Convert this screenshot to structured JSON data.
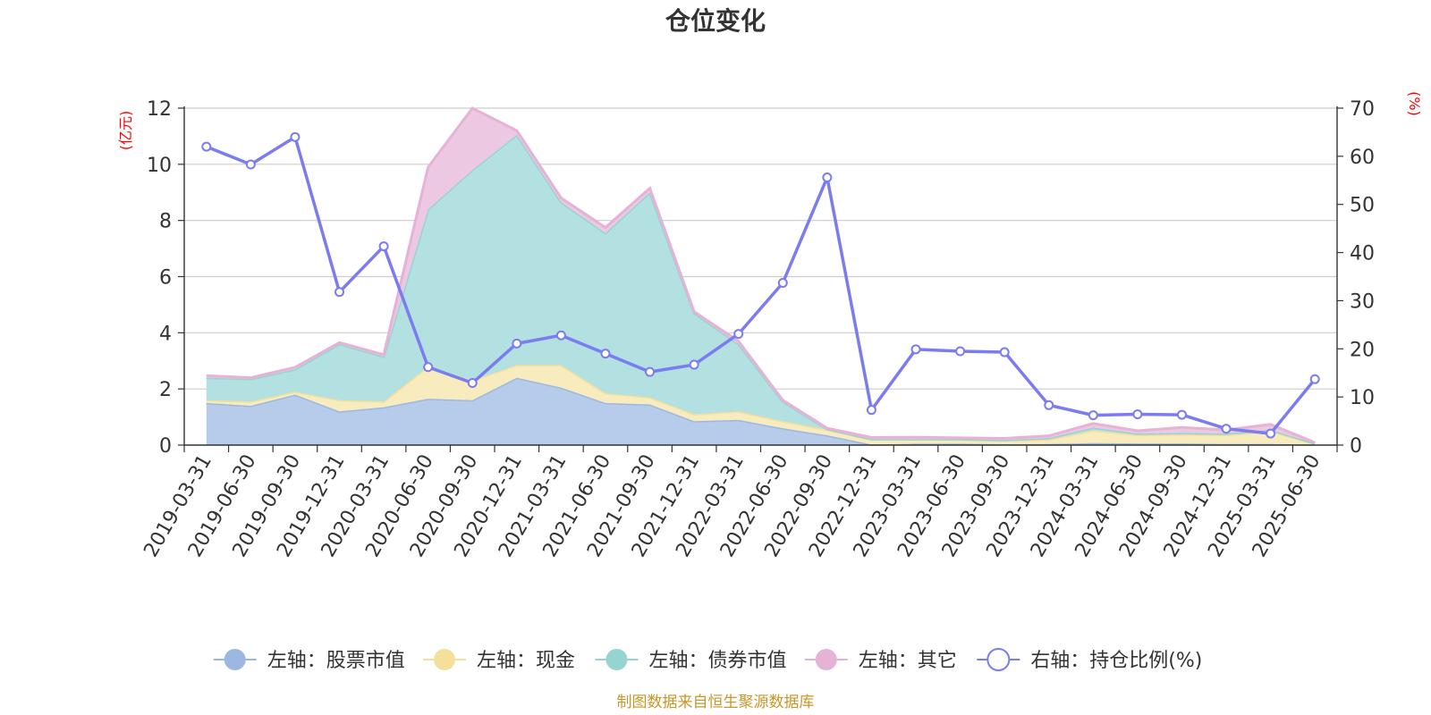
{
  "chart_data": {
    "type": "area",
    "title": "仓位变化",
    "left_axis": {
      "unit": "(亿元)",
      "ylim": [
        0,
        12
      ],
      "ticks": [
        "0",
        "2",
        "4",
        "6",
        "8",
        "10",
        "12"
      ]
    },
    "right_axis": {
      "unit": "(%)",
      "ylim": [
        0,
        70
      ],
      "ticks": [
        "0",
        "10",
        "20",
        "30",
        "40",
        "50",
        "60",
        "70"
      ]
    },
    "categories": [
      "2019-03-31",
      "2019-06-30",
      "2019-09-30",
      "2019-12-31",
      "2020-03-31",
      "2020-06-30",
      "2020-09-30",
      "2020-12-31",
      "2021-03-31",
      "2021-06-30",
      "2021-09-30",
      "2021-12-31",
      "2022-03-31",
      "2022-06-30",
      "2022-09-30",
      "2022-12-31",
      "2023-03-31",
      "2023-06-30",
      "2023-09-30",
      "2023-12-31",
      "2024-03-31",
      "2024-06-30",
      "2024-09-30",
      "2024-12-31",
      "2025-03-31",
      "2025-06-30"
    ],
    "series": [
      {
        "name": "左轴：股票市值",
        "axis": "left",
        "stacked": true,
        "color": "#9db8e0",
        "fill": "#b7cbea",
        "values": [
          1.5,
          1.4,
          1.8,
          1.2,
          1.35,
          1.65,
          1.6,
          2.4,
          2.05,
          1.5,
          1.45,
          0.85,
          0.9,
          0.6,
          0.35,
          0.02,
          0.05,
          0.05,
          0.03,
          0.04,
          0.07,
          0.06,
          0.06,
          0.04,
          0.04,
          0.02
        ]
      },
      {
        "name": "左轴：现金",
        "axis": "left",
        "stacked": true,
        "color": "#f5e09a",
        "fill": "#f8ecbe",
        "values": [
          0.1,
          0.15,
          0.1,
          0.4,
          0.2,
          1.15,
          0.7,
          0.45,
          0.8,
          0.35,
          0.25,
          0.25,
          0.3,
          0.25,
          0.2,
          0.18,
          0.15,
          0.15,
          0.13,
          0.16,
          0.45,
          0.3,
          0.32,
          0.32,
          0.45,
          0.03
        ]
      },
      {
        "name": "左轴：债券市值",
        "axis": "left",
        "stacked": true,
        "color": "#96d4d2",
        "fill": "#b3e1e1",
        "values": [
          0.8,
          0.8,
          0.8,
          2.0,
          1.6,
          5.6,
          7.5,
          8.2,
          5.8,
          5.7,
          7.3,
          3.6,
          2.4,
          0.7,
          0.02,
          0.01,
          0.01,
          0.01,
          0.02,
          0.05,
          0.1,
          0.05,
          0.05,
          0.05,
          0.05,
          0.01
        ]
      },
      {
        "name": "左轴：其它",
        "axis": "left",
        "stacked": true,
        "color": "#e6b2d6",
        "fill": "#ecc8e3",
        "values": [
          0.07,
          0.05,
          0.07,
          0.05,
          0.07,
          1.5,
          2.2,
          0.15,
          0.15,
          0.2,
          0.15,
          0.05,
          0.1,
          0.05,
          0.03,
          0.06,
          0.07,
          0.05,
          0.06,
          0.08,
          0.15,
          0.1,
          0.2,
          0.13,
          0.2,
          0.03
        ]
      },
      {
        "name": "右轴：持仓比例(%)",
        "axis": "right",
        "type": "line",
        "color": "#7b7cf0",
        "values": [
          62,
          58.3,
          64,
          31.8,
          41.3,
          16.2,
          12.9,
          21.1,
          22.8,
          19,
          15.2,
          16.7,
          23.1,
          33.7,
          55.6,
          7.3,
          19.9,
          19.5,
          19.3,
          8.3,
          6.2,
          6.4,
          6.3,
          3.4,
          2.4,
          13.7
        ]
      }
    ],
    "grid": true,
    "legend_position": "bottom-center",
    "source": "制图数据来自恒生聚源数据库"
  }
}
